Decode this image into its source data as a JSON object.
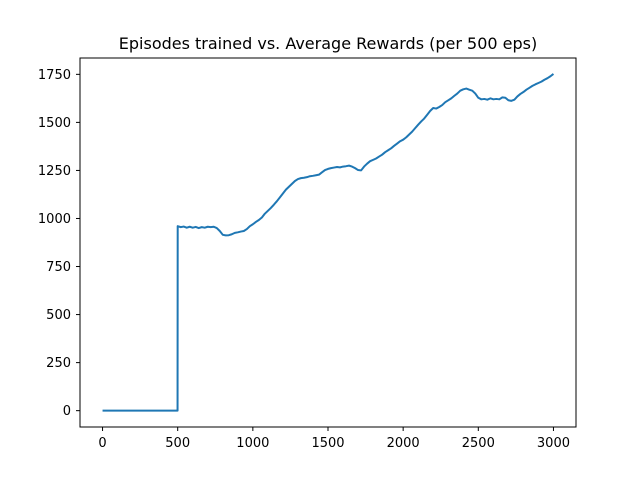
{
  "chart_data": {
    "type": "line",
    "title": "Episodes trained vs. Average Rewards (per 500 eps)",
    "xlabel": "",
    "ylabel": "",
    "xlim": [
      -150,
      3150
    ],
    "ylim": [
      -85,
      1835
    ],
    "x_ticks": [
      0,
      500,
      1000,
      1500,
      2000,
      2500,
      3000
    ],
    "y_ticks": [
      0,
      250,
      500,
      750,
      1000,
      1250,
      1500,
      1750
    ],
    "grid": false,
    "legend": "none",
    "series": [
      {
        "color": "#1f77b4",
        "points": [
          [
            0,
            0
          ],
          [
            499,
            0
          ],
          [
            500,
            960
          ],
          [
            520,
            955
          ],
          [
            540,
            958
          ],
          [
            560,
            952
          ],
          [
            580,
            957
          ],
          [
            600,
            952
          ],
          [
            620,
            956
          ],
          [
            640,
            950
          ],
          [
            660,
            955
          ],
          [
            680,
            952
          ],
          [
            700,
            957
          ],
          [
            720,
            955
          ],
          [
            740,
            957
          ],
          [
            760,
            950
          ],
          [
            780,
            935
          ],
          [
            800,
            915
          ],
          [
            820,
            912
          ],
          [
            840,
            913
          ],
          [
            860,
            918
          ],
          [
            880,
            925
          ],
          [
            900,
            928
          ],
          [
            920,
            932
          ],
          [
            940,
            935
          ],
          [
            960,
            945
          ],
          [
            980,
            960
          ],
          [
            1000,
            970
          ],
          [
            1020,
            982
          ],
          [
            1040,
            992
          ],
          [
            1060,
            1005
          ],
          [
            1080,
            1025
          ],
          [
            1100,
            1040
          ],
          [
            1120,
            1055
          ],
          [
            1140,
            1072
          ],
          [
            1160,
            1090
          ],
          [
            1180,
            1110
          ],
          [
            1200,
            1130
          ],
          [
            1220,
            1150
          ],
          [
            1240,
            1165
          ],
          [
            1260,
            1180
          ],
          [
            1280,
            1195
          ],
          [
            1300,
            1205
          ],
          [
            1320,
            1210
          ],
          [
            1340,
            1212
          ],
          [
            1360,
            1215
          ],
          [
            1380,
            1220
          ],
          [
            1400,
            1222
          ],
          [
            1420,
            1225
          ],
          [
            1440,
            1228
          ],
          [
            1460,
            1240
          ],
          [
            1480,
            1252
          ],
          [
            1500,
            1258
          ],
          [
            1520,
            1262
          ],
          [
            1540,
            1265
          ],
          [
            1560,
            1268
          ],
          [
            1580,
            1266
          ],
          [
            1600,
            1270
          ],
          [
            1620,
            1272
          ],
          [
            1640,
            1275
          ],
          [
            1660,
            1270
          ],
          [
            1680,
            1262
          ],
          [
            1700,
            1252
          ],
          [
            1720,
            1250
          ],
          [
            1740,
            1270
          ],
          [
            1760,
            1285
          ],
          [
            1780,
            1298
          ],
          [
            1800,
            1305
          ],
          [
            1820,
            1312
          ],
          [
            1840,
            1322
          ],
          [
            1860,
            1332
          ],
          [
            1880,
            1345
          ],
          [
            1900,
            1355
          ],
          [
            1920,
            1365
          ],
          [
            1940,
            1378
          ],
          [
            1960,
            1390
          ],
          [
            1980,
            1402
          ],
          [
            2000,
            1410
          ],
          [
            2020,
            1422
          ],
          [
            2040,
            1437
          ],
          [
            2060,
            1452
          ],
          [
            2080,
            1470
          ],
          [
            2100,
            1488
          ],
          [
            2120,
            1505
          ],
          [
            2140,
            1520
          ],
          [
            2160,
            1540
          ],
          [
            2180,
            1560
          ],
          [
            2200,
            1575
          ],
          [
            2220,
            1572
          ],
          [
            2240,
            1580
          ],
          [
            2260,
            1590
          ],
          [
            2280,
            1605
          ],
          [
            2300,
            1615
          ],
          [
            2320,
            1625
          ],
          [
            2340,
            1638
          ],
          [
            2360,
            1650
          ],
          [
            2380,
            1665
          ],
          [
            2400,
            1672
          ],
          [
            2420,
            1676
          ],
          [
            2440,
            1670
          ],
          [
            2460,
            1665
          ],
          [
            2480,
            1650
          ],
          [
            2500,
            1628
          ],
          [
            2520,
            1620
          ],
          [
            2540,
            1622
          ],
          [
            2560,
            1618
          ],
          [
            2580,
            1625
          ],
          [
            2600,
            1620
          ],
          [
            2620,
            1622
          ],
          [
            2640,
            1620
          ],
          [
            2660,
            1630
          ],
          [
            2680,
            1628
          ],
          [
            2700,
            1615
          ],
          [
            2720,
            1612
          ],
          [
            2740,
            1618
          ],
          [
            2760,
            1635
          ],
          [
            2780,
            1648
          ],
          [
            2800,
            1658
          ],
          [
            2820,
            1670
          ],
          [
            2840,
            1680
          ],
          [
            2860,
            1690
          ],
          [
            2880,
            1698
          ],
          [
            2900,
            1705
          ],
          [
            2920,
            1712
          ],
          [
            2940,
            1722
          ],
          [
            2960,
            1730
          ],
          [
            2980,
            1740
          ],
          [
            3000,
            1752
          ]
        ]
      }
    ]
  }
}
